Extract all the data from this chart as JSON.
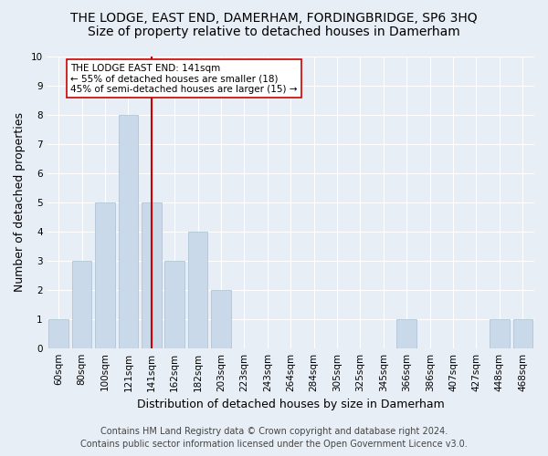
{
  "title_line1": "THE LODGE, EAST END, DAMERHAM, FORDINGBRIDGE, SP6 3HQ",
  "title_line2": "Size of property relative to detached houses in Damerham",
  "xlabel": "Distribution of detached houses by size in Damerham",
  "ylabel": "Number of detached properties",
  "categories": [
    "60sqm",
    "80sqm",
    "100sqm",
    "121sqm",
    "141sqm",
    "162sqm",
    "182sqm",
    "203sqm",
    "223sqm",
    "243sqm",
    "264sqm",
    "284sqm",
    "305sqm",
    "325sqm",
    "345sqm",
    "366sqm",
    "386sqm",
    "407sqm",
    "427sqm",
    "448sqm",
    "468sqm"
  ],
  "values": [
    1,
    3,
    5,
    8,
    5,
    3,
    4,
    2,
    0,
    0,
    0,
    0,
    0,
    0,
    0,
    1,
    0,
    0,
    0,
    1,
    1
  ],
  "bar_color": "#c9d9e9",
  "bar_edgecolor": "#a8bfcf",
  "vline_x_index": 4,
  "vline_color": "#cc0000",
  "annotation_text": "THE LODGE EAST END: 141sqm\n← 55% of detached houses are smaller (18)\n45% of semi-detached houses are larger (15) →",
  "annotation_box_facecolor": "#ffffff",
  "annotation_box_edgecolor": "#cc0000",
  "ylim": [
    0,
    10
  ],
  "yticks": [
    0,
    1,
    2,
    3,
    4,
    5,
    6,
    7,
    8,
    9,
    10
  ],
  "footer_line1": "Contains HM Land Registry data © Crown copyright and database right 2024.",
  "footer_line2": "Contains public sector information licensed under the Open Government Licence v3.0.",
  "background_color": "#e8eef5",
  "plot_background_color": "#e8eef5",
  "grid_color": "#ffffff",
  "title1_fontsize": 10,
  "title2_fontsize": 10,
  "ylabel_fontsize": 9,
  "xlabel_fontsize": 9,
  "tick_fontsize": 7.5,
  "footer_fontsize": 7,
  "annotation_fontsize": 7.5
}
